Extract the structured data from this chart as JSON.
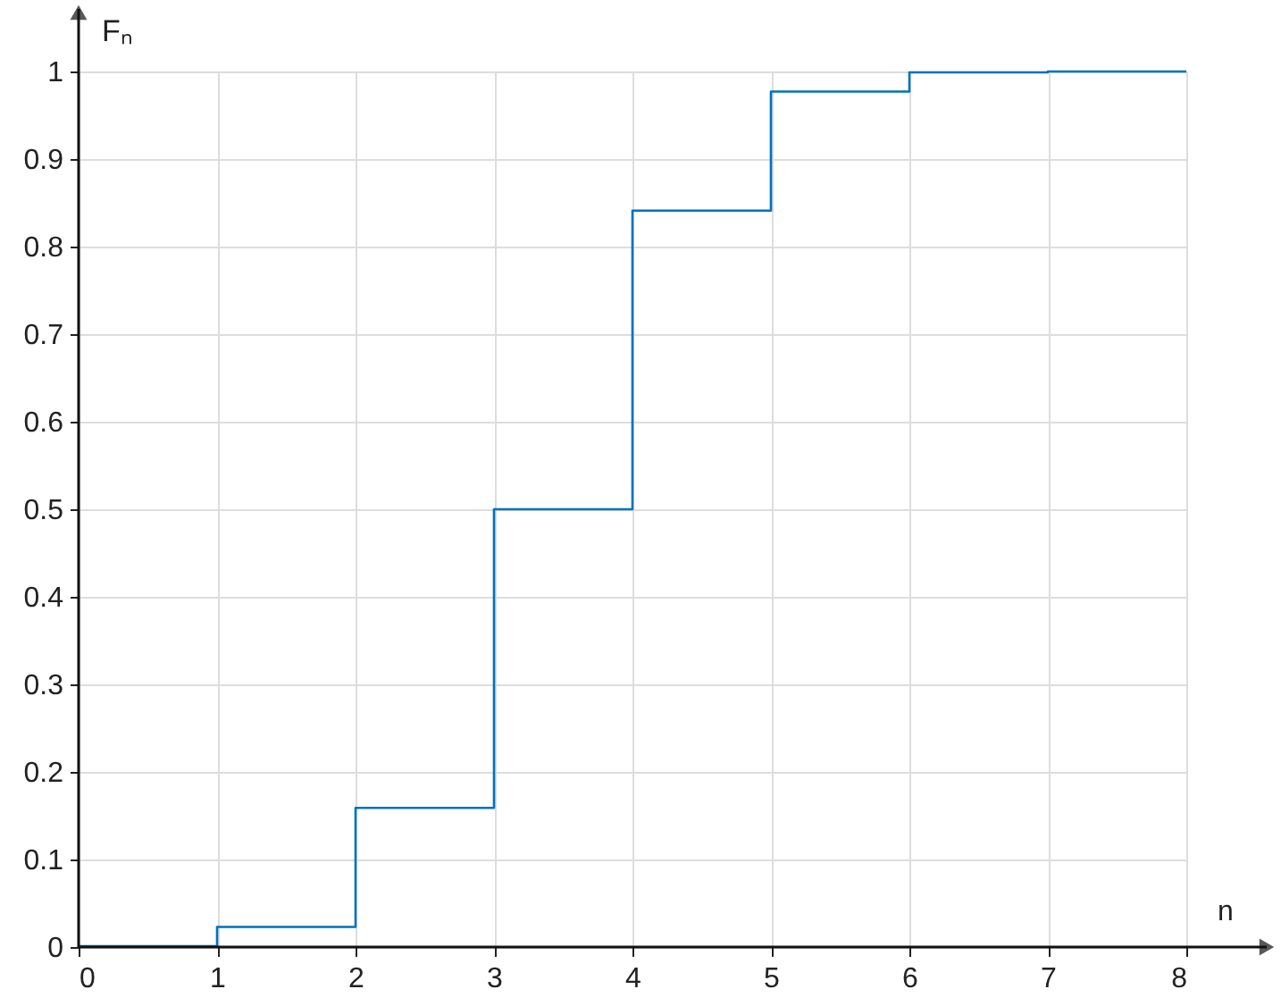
{
  "chart_data": {
    "type": "step",
    "xlabel": "n",
    "ylabel": "Fₙ",
    "x": [
      0,
      1,
      2,
      3,
      4,
      5,
      6,
      7,
      8
    ],
    "series": [
      {
        "color": "#0072bd",
        "values": [
          0.001,
          0.023,
          0.159,
          0.5,
          0.841,
          0.977,
          0.999,
          1.0,
          1.0
        ]
      }
    ],
    "xlim": [
      0,
      8
    ],
    "xticks": [
      0,
      1,
      2,
      3,
      4,
      5,
      6,
      7,
      8
    ],
    "ylim": [
      0,
      1
    ],
    "yticks": [
      0,
      0.1,
      0.2,
      0.3,
      0.4,
      0.5,
      0.6,
      0.7,
      0.8,
      0.9,
      1
    ],
    "grid": true,
    "marker": "none",
    "line_style": "solid"
  }
}
